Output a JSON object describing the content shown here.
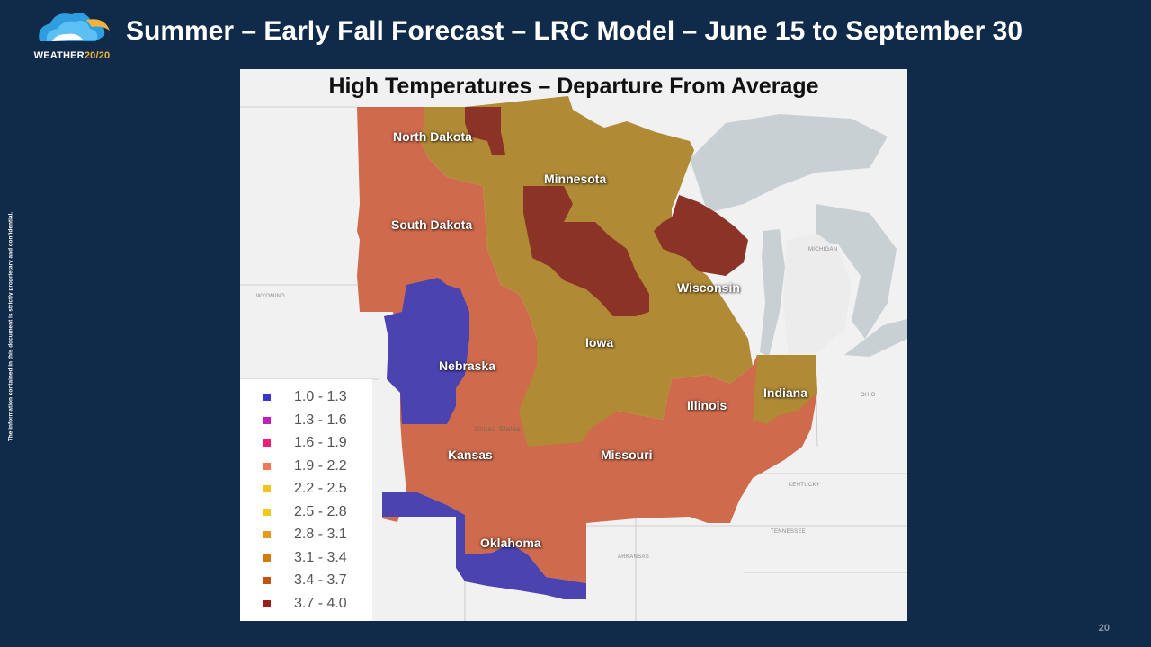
{
  "header": {
    "title": "Summer – Early Fall Forecast – LRC Model – June 15 to September 30",
    "logo_text_main": "WEATHER",
    "logo_text_accent": "20/20"
  },
  "sidebar_note": "The information contained in this document is strictly proprietary and confidential.",
  "page_number": "20",
  "map": {
    "title": "High Temperatures – Departure From Average",
    "state_labels": {
      "north_dakota": "North Dakota",
      "minnesota": "Minnesota",
      "south_dakota": "South Dakota",
      "wisconsin": "Wisconsin",
      "iowa": "Iowa",
      "nebraska": "Nebraska",
      "illinois": "Illinois",
      "indiana": "Indiana",
      "kansas": "Kansas",
      "missouri": "Missouri",
      "oklahoma": "Oklahoma"
    },
    "background_labels": {
      "wyoming": "WYOMING",
      "michigan": "MICHIGAN",
      "ohio": "OHIO",
      "kentucky": "KENTUCKY",
      "tennessee": "TENNESSEE",
      "arkansas": "ARKANSAS",
      "united_states": "United States"
    },
    "legend": [
      {
        "label": "1.0 - 1.3",
        "color": "#3a34c8"
      },
      {
        "label": "1.3 - 1.6",
        "color": "#c21fb8"
      },
      {
        "label": "1.6 - 1.9",
        "color": "#ef1f78"
      },
      {
        "label": "1.9 - 2.2",
        "color": "#ef7a55"
      },
      {
        "label": "2.2 - 2.5",
        "color": "#f6c21a"
      },
      {
        "label": "2.5 - 2.8",
        "color": "#f2c81b"
      },
      {
        "label": "2.8 - 3.1",
        "color": "#e59a1c"
      },
      {
        "label": "3.1 - 3.4",
        "color": "#d37a12"
      },
      {
        "label": "3.4 - 3.7",
        "color": "#c4520f"
      },
      {
        "label": "3.7 - 4.0",
        "color": "#9c1e14"
      }
    ],
    "region_colors": {
      "coral": "#cf6a4c",
      "gold": "#b08a35",
      "darkred": "#8a3326",
      "blue": "#4b44b0"
    }
  }
}
